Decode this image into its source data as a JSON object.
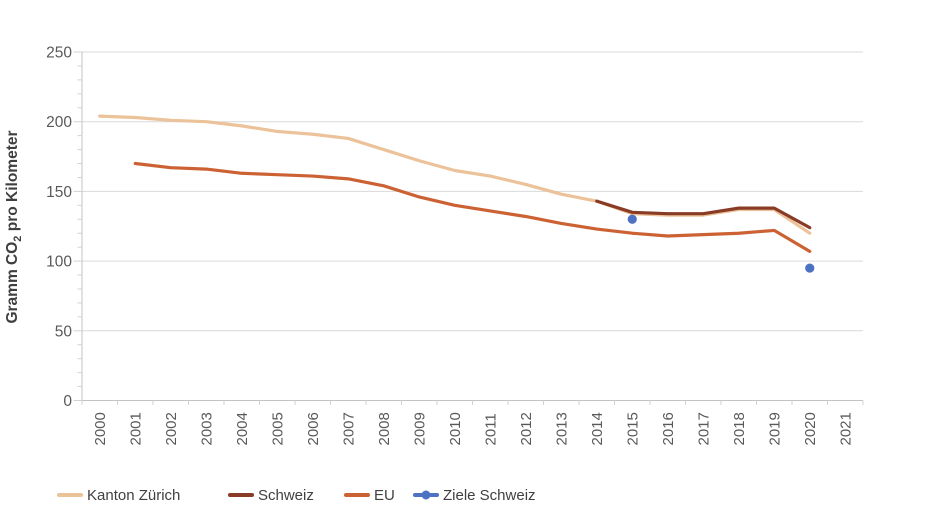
{
  "chart_data": {
    "type": "line",
    "title": "",
    "ylabel_parts": {
      "pre": "Gramm CO",
      "sub": "2",
      "post": " pro Kilometer"
    },
    "x_categories": [
      "2000",
      "2001",
      "2002",
      "2003",
      "2004",
      "2005",
      "2006",
      "2007",
      "2008",
      "2009",
      "2010",
      "2011",
      "2012",
      "2013",
      "2014",
      "2015",
      "2016",
      "2017",
      "2018",
      "2019",
      "2020",
      "2021"
    ],
    "y_ticks": [
      "0",
      "50",
      "100",
      "150",
      "200",
      "250"
    ],
    "ylim": [
      0,
      250
    ],
    "y_major_step": 50,
    "y_minor_step": 10,
    "grid": "horizontal-major",
    "legend_position": "bottom",
    "colors": {
      "gridline": "#d9d9d9",
      "axis": "#c3c3c3",
      "tick": "#d2d2d2",
      "tick_label": "#595959",
      "legend_text": "#404040"
    },
    "series": [
      {
        "name": "Kanton Zürich",
        "color": "#ebc299",
        "start_category": "2000",
        "values": [
          204,
          203,
          201,
          200,
          197,
          193,
          191,
          188,
          180,
          172,
          165,
          161,
          155,
          148,
          143,
          134,
          133,
          133,
          137,
          137,
          120
        ]
      },
      {
        "name": "Schweiz",
        "color": "#8a3b26",
        "start_category": "2014",
        "values": [
          143,
          135,
          134,
          134,
          138,
          138,
          124
        ]
      },
      {
        "name": "EU",
        "color": "#cc6233",
        "start_category": "2001",
        "values": [
          170,
          167,
          166,
          163,
          162,
          161,
          159,
          154,
          146,
          140,
          136,
          132,
          127,
          123,
          120,
          118,
          119,
          120,
          122,
          107
        ]
      },
      {
        "name": "Ziele Schweiz",
        "color": "#4d72c4",
        "style": "points",
        "points": [
          {
            "x": "2015",
            "y": 130
          },
          {
            "x": "2020",
            "y": 95
          }
        ]
      }
    ]
  },
  "legend": {
    "item_lefts": [
      57,
      228,
      344,
      413
    ]
  }
}
